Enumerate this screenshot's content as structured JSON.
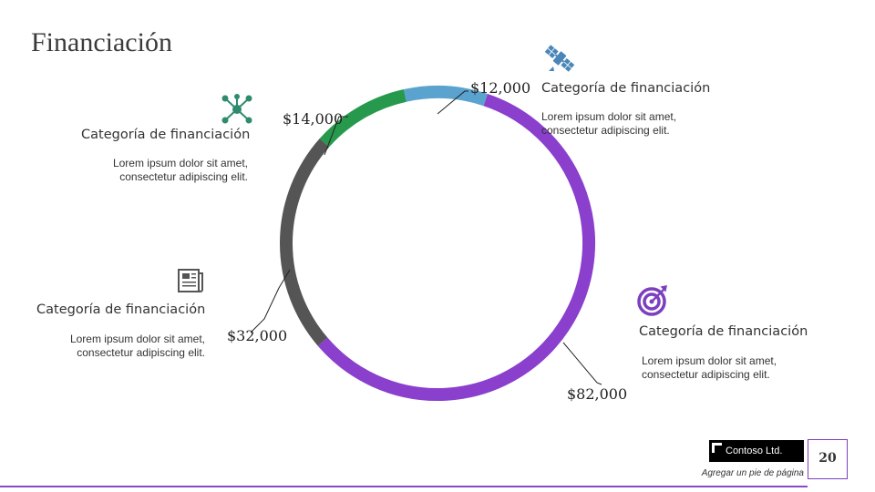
{
  "slide": {
    "title": "Financiación",
    "page_number": "20",
    "footer_text": "Agregar un pie de página",
    "logo_text": "Contoso Ltd."
  },
  "chart_data": {
    "type": "pie",
    "style": "donut",
    "slices": [
      {
        "label": "$82,000",
        "value": 82000,
        "color": "#8a3fcd"
      },
      {
        "label": "$32,000",
        "value": 32000,
        "color": "#555555"
      },
      {
        "label": "$14,000",
        "value": 14000,
        "color": "#27994d"
      },
      {
        "label": "$12,000",
        "value": 12000,
        "color": "#5ba3cf"
      }
    ]
  },
  "categories": [
    {
      "title": "Categoría de financiación",
      "desc_line1": "Lorem ipsum dolor sit amet,",
      "desc_line2": "consectetur adipiscing elit.",
      "icon": "satellite-icon"
    },
    {
      "title": "Categoría de financiación",
      "desc_line1": "Lorem ipsum dolor sit amet,",
      "desc_line2": "consectetur adipiscing elit.",
      "icon": "network-icon"
    },
    {
      "title": "Categoría de financiación",
      "desc_line1": "Lorem ipsum dolor sit amet,",
      "desc_line2": "consectetur adipiscing elit.",
      "icon": "newspaper-icon"
    },
    {
      "title": "Categoría de financiación",
      "desc_line1": "Lorem ipsum dolor sit amet,",
      "desc_line2": "consectetur adipiscing elit.",
      "icon": "target-icon"
    }
  ],
  "colors": {
    "accent": "#8a48c9",
    "icon_teal": "#2e8b6e",
    "icon_blue": "#4a86b8",
    "icon_purple": "#7b3fbf",
    "icon_gray": "#555555"
  }
}
